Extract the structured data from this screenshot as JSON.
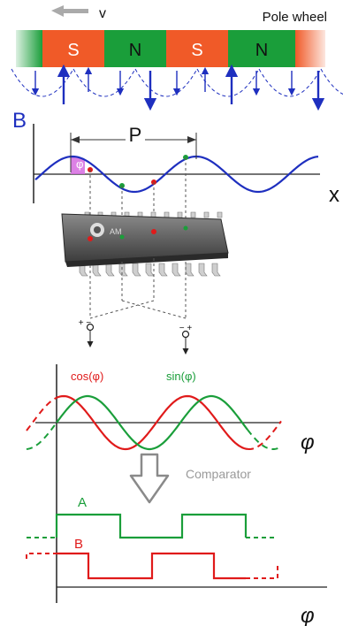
{
  "magnet": {
    "title": "Pole wheel",
    "velocity_label": "v",
    "poles": [
      "S",
      "N",
      "S",
      "N"
    ],
    "colors": {
      "S": "#f05a28",
      "N": "#1a9e3a"
    }
  },
  "field": {
    "y_label": "B",
    "x_label": "x",
    "period_label": "P",
    "phase_label": "φ",
    "curve_color": "#1e2fbf"
  },
  "chip": {
    "marking": "AM"
  },
  "connectors": {
    "left": "+  −",
    "right": "−  +"
  },
  "outputs": {
    "cos_label": "cos(φ)",
    "sin_label": "sin(φ)",
    "cos_color": "#e01a1a",
    "sin_color": "#1a9e3a",
    "x_label": "φ"
  },
  "comparator_label": "Comparator",
  "digital": {
    "a_label": "A",
    "b_label": "B",
    "x_label": "φ",
    "a_color": "#1a9e3a",
    "b_color": "#e01a1a"
  }
}
